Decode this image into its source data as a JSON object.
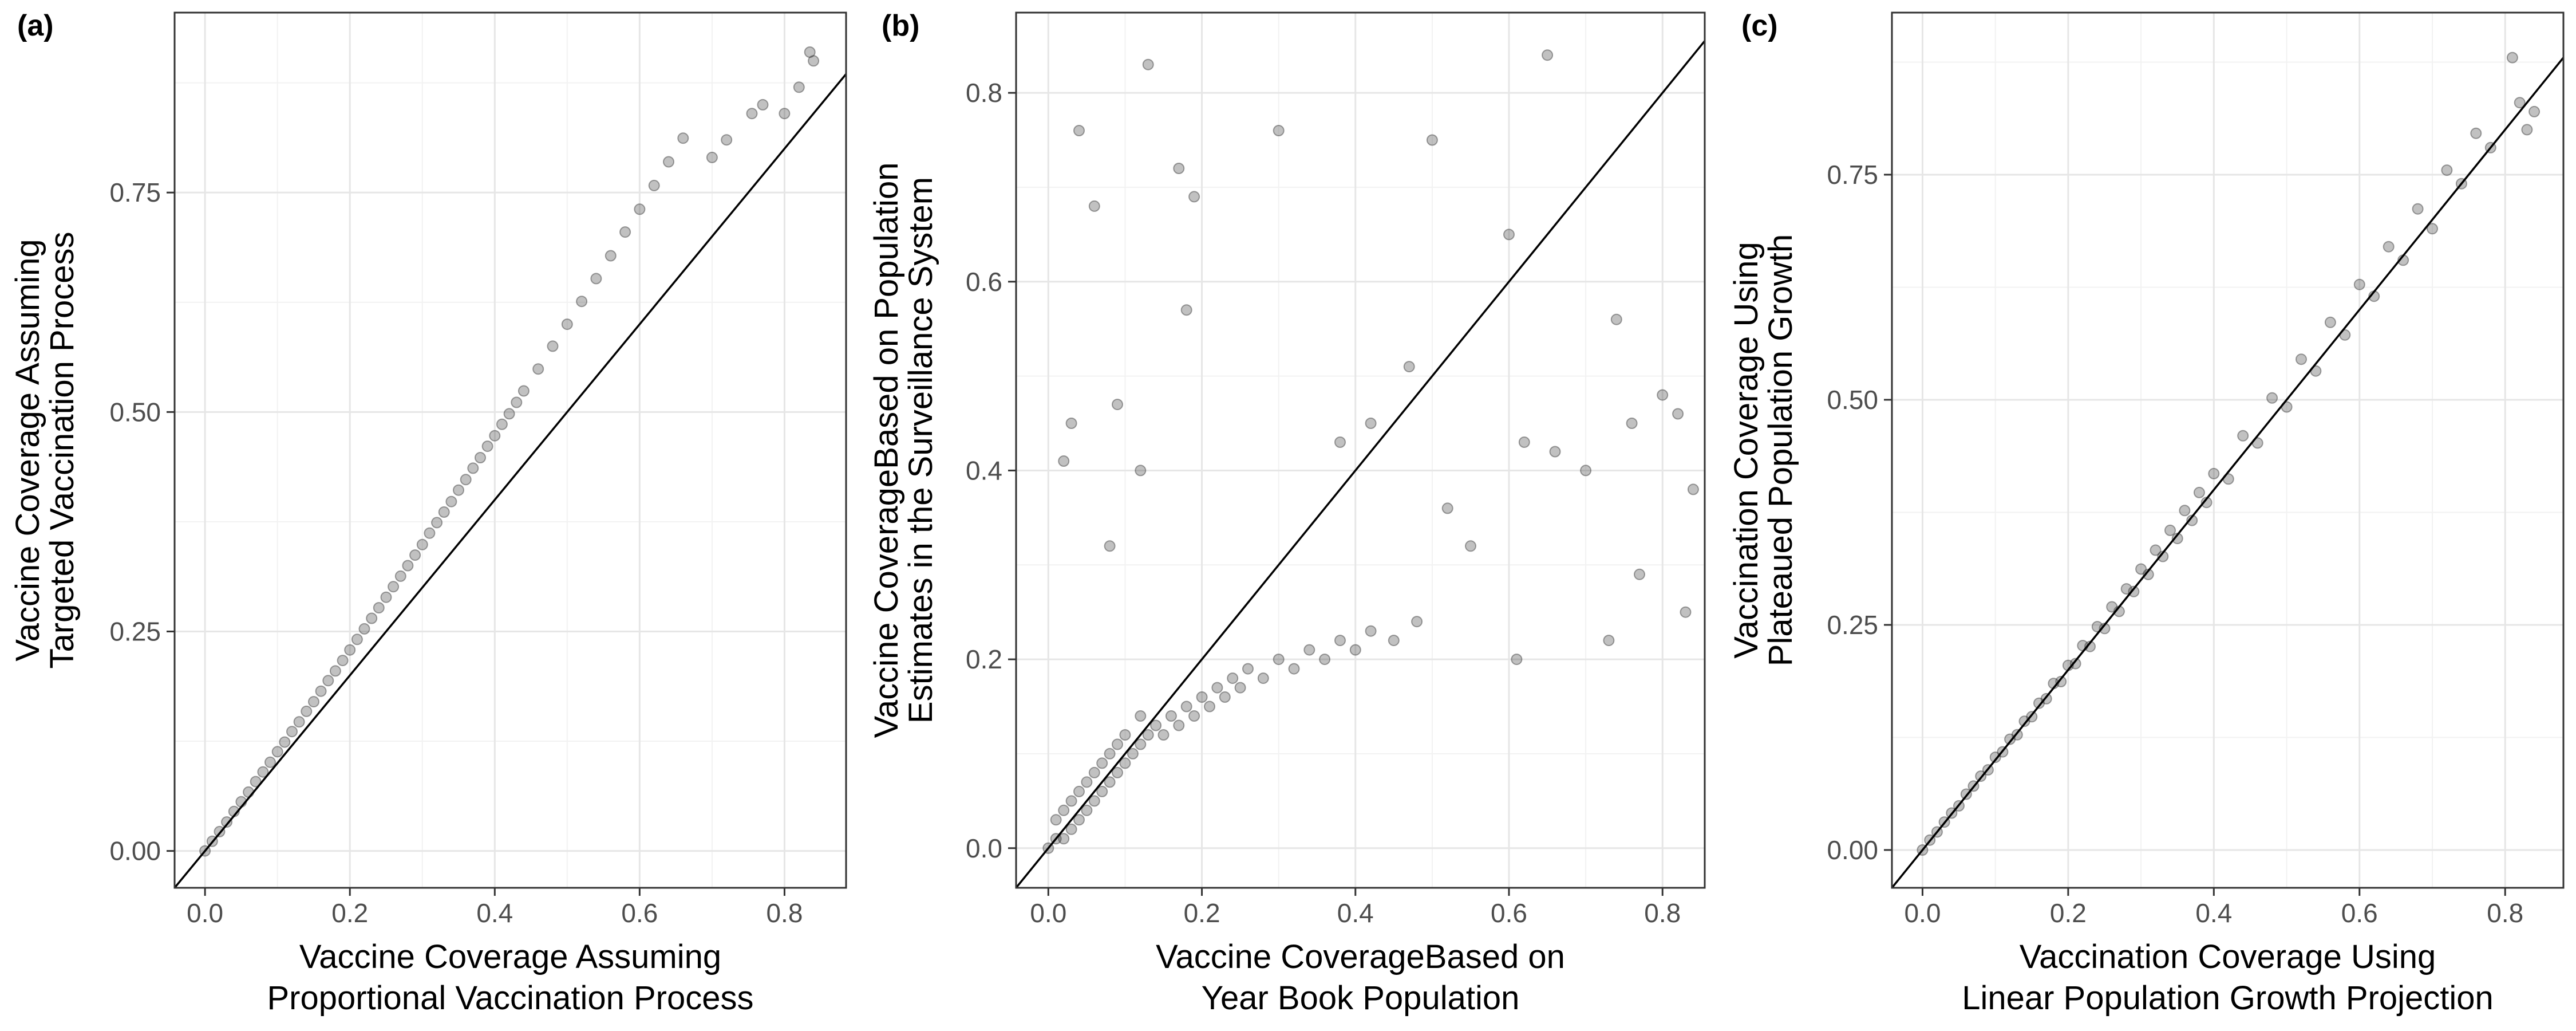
{
  "figure": {
    "panels": [
      {
        "tag": "(a)",
        "xlabel_lines": [
          "Vaccine Coverage Assuming",
          "Proportional Vaccination Process"
        ],
        "ylabel_lines": [
          "Vaccine Coverage Assuming",
          "Targeted Vaccination Process"
        ]
      },
      {
        "tag": "(b)",
        "xlabel_lines": [
          "Vaccine CoverageBased on",
          "Year Book Population"
        ],
        "ylabel_lines": [
          "Vaccine CoverageBased on Population",
          "Estimates in the Surveillance System"
        ]
      },
      {
        "tag": "(c)",
        "xlabel_lines": [
          "Vaccination Coverage Using",
          "Linear Population Growth Projection"
        ],
        "ylabel_lines": [
          "Vaccination Coverage Using",
          "Plateaued Population Growth"
        ]
      }
    ]
  },
  "chart_data": [
    {
      "type": "scatter",
      "panel_tag": "(a)",
      "title": "",
      "xlabel": "Vaccine Coverage Assuming Proportional Vaccination Process",
      "ylabel": "Vaccine Coverage Assuming Targeted Vaccination Process",
      "xlim": [
        -0.042,
        0.885
      ],
      "ylim": [
        -0.042,
        0.955
      ],
      "xticks": [
        0.0,
        0.2,
        0.4,
        0.6,
        0.8
      ],
      "xtick_labels": [
        "0.0",
        "0.2",
        "0.4",
        "0.6",
        "0.8"
      ],
      "yticks": [
        0.0,
        0.25,
        0.5,
        0.75
      ],
      "ytick_labels": [
        "0.00",
        "0.25",
        "0.50",
        "0.75"
      ],
      "reference_line": "y = x",
      "grid": true,
      "point_color": "#333333",
      "series": [
        {
          "points": [
            [
              0.0,
              0.0
            ],
            [
              0.01,
              0.011
            ],
            [
              0.02,
              0.022
            ],
            [
              0.03,
              0.033
            ],
            [
              0.04,
              0.045
            ],
            [
              0.05,
              0.056
            ],
            [
              0.06,
              0.067
            ],
            [
              0.07,
              0.079
            ],
            [
              0.08,
              0.09
            ],
            [
              0.09,
              0.101
            ],
            [
              0.1,
              0.113
            ],
            [
              0.11,
              0.124
            ],
            [
              0.12,
              0.136
            ],
            [
              0.13,
              0.147
            ],
            [
              0.14,
              0.159
            ],
            [
              0.15,
              0.17
            ],
            [
              0.16,
              0.182
            ],
            [
              0.17,
              0.194
            ],
            [
              0.18,
              0.205
            ],
            [
              0.19,
              0.217
            ],
            [
              0.2,
              0.229
            ],
            [
              0.21,
              0.241
            ],
            [
              0.22,
              0.253
            ],
            [
              0.23,
              0.265
            ],
            [
              0.24,
              0.277
            ],
            [
              0.25,
              0.289
            ],
            [
              0.26,
              0.301
            ],
            [
              0.27,
              0.313
            ],
            [
              0.28,
              0.325
            ],
            [
              0.29,
              0.337
            ],
            [
              0.3,
              0.349
            ],
            [
              0.31,
              0.362
            ],
            [
              0.32,
              0.374
            ],
            [
              0.33,
              0.386
            ],
            [
              0.34,
              0.398
            ],
            [
              0.35,
              0.411
            ],
            [
              0.36,
              0.423
            ],
            [
              0.37,
              0.436
            ],
            [
              0.38,
              0.448
            ],
            [
              0.39,
              0.461
            ],
            [
              0.4,
              0.473
            ],
            [
              0.41,
              0.486
            ],
            [
              0.42,
              0.498
            ],
            [
              0.43,
              0.511
            ],
            [
              0.44,
              0.524
            ],
            [
              0.46,
              0.549
            ],
            [
              0.48,
              0.575
            ],
            [
              0.5,
              0.6
            ],
            [
              0.52,
              0.626
            ],
            [
              0.54,
              0.652
            ],
            [
              0.56,
              0.678
            ],
            [
              0.58,
              0.705
            ],
            [
              0.6,
              0.731
            ],
            [
              0.62,
              0.758
            ],
            [
              0.64,
              0.785
            ],
            [
              0.66,
              0.812
            ],
            [
              0.7,
              0.79
            ],
            [
              0.72,
              0.81
            ],
            [
              0.755,
              0.84
            ],
            [
              0.77,
              0.85
            ],
            [
              0.8,
              0.84
            ],
            [
              0.82,
              0.87
            ],
            [
              0.835,
              0.91
            ],
            [
              0.84,
              0.9
            ]
          ]
        }
      ]
    },
    {
      "type": "scatter",
      "panel_tag": "(b)",
      "title": "",
      "xlabel": "Vaccine CoverageBased on Year Book Population",
      "ylabel": "Vaccine CoverageBased on Population Estimates in the Surveillance System",
      "xlim": [
        -0.042,
        0.855
      ],
      "ylim": [
        -0.042,
        0.885
      ],
      "xticks": [
        0.0,
        0.2,
        0.4,
        0.6,
        0.8
      ],
      "xtick_labels": [
        "0.0",
        "0.2",
        "0.4",
        "0.6",
        "0.8"
      ],
      "yticks": [
        0.0,
        0.2,
        0.4,
        0.6,
        0.8
      ],
      "ytick_labels": [
        "0.0",
        "0.2",
        "0.4",
        "0.6",
        "0.8"
      ],
      "reference_line": "y = x",
      "grid": true,
      "point_color": "#333333",
      "series": [
        {
          "points": [
            [
              0.0,
              0.0
            ],
            [
              0.01,
              0.01
            ],
            [
              0.01,
              0.03
            ],
            [
              0.02,
              0.01
            ],
            [
              0.02,
              0.04
            ],
            [
              0.03,
              0.02
            ],
            [
              0.03,
              0.05
            ],
            [
              0.04,
              0.03
            ],
            [
              0.04,
              0.06
            ],
            [
              0.05,
              0.04
            ],
            [
              0.05,
              0.07
            ],
            [
              0.06,
              0.05
            ],
            [
              0.06,
              0.08
            ],
            [
              0.07,
              0.06
            ],
            [
              0.07,
              0.09
            ],
            [
              0.08,
              0.07
            ],
            [
              0.08,
              0.1
            ],
            [
              0.09,
              0.08
            ],
            [
              0.09,
              0.11
            ],
            [
              0.1,
              0.09
            ],
            [
              0.1,
              0.12
            ],
            [
              0.11,
              0.1
            ],
            [
              0.12,
              0.11
            ],
            [
              0.12,
              0.14
            ],
            [
              0.13,
              0.12
            ],
            [
              0.14,
              0.13
            ],
            [
              0.15,
              0.12
            ],
            [
              0.16,
              0.14
            ],
            [
              0.17,
              0.13
            ],
            [
              0.18,
              0.15
            ],
            [
              0.19,
              0.14
            ],
            [
              0.2,
              0.16
            ],
            [
              0.21,
              0.15
            ],
            [
              0.22,
              0.17
            ],
            [
              0.23,
              0.16
            ],
            [
              0.24,
              0.18
            ],
            [
              0.25,
              0.17
            ],
            [
              0.26,
              0.19
            ],
            [
              0.28,
              0.18
            ],
            [
              0.3,
              0.2
            ],
            [
              0.32,
              0.19
            ],
            [
              0.34,
              0.21
            ],
            [
              0.36,
              0.2
            ],
            [
              0.38,
              0.22
            ],
            [
              0.4,
              0.21
            ],
            [
              0.42,
              0.23
            ],
            [
              0.45,
              0.22
            ],
            [
              0.48,
              0.24
            ],
            [
              0.02,
              0.41
            ],
            [
              0.03,
              0.45
            ],
            [
              0.04,
              0.76
            ],
            [
              0.06,
              0.68
            ],
            [
              0.09,
              0.47
            ],
            [
              0.13,
              0.83
            ],
            [
              0.17,
              0.72
            ],
            [
              0.18,
              0.57
            ],
            [
              0.19,
              0.69
            ],
            [
              0.3,
              0.76
            ],
            [
              0.5,
              0.75
            ],
            [
              0.65,
              0.84
            ],
            [
              0.6,
              0.65
            ],
            [
              0.42,
              0.45
            ],
            [
              0.38,
              0.43
            ],
            [
              0.47,
              0.51
            ],
            [
              0.55,
              0.32
            ],
            [
              0.62,
              0.43
            ],
            [
              0.66,
              0.42
            ],
            [
              0.7,
              0.4
            ],
            [
              0.74,
              0.56
            ],
            [
              0.76,
              0.45
            ],
            [
              0.8,
              0.48
            ],
            [
              0.82,
              0.46
            ],
            [
              0.84,
              0.38
            ],
            [
              0.83,
              0.25
            ],
            [
              0.77,
              0.29
            ],
            [
              0.73,
              0.22
            ],
            [
              0.61,
              0.2
            ],
            [
              0.52,
              0.36
            ],
            [
              0.08,
              0.32
            ],
            [
              0.12,
              0.4
            ]
          ]
        }
      ]
    },
    {
      "type": "scatter",
      "panel_tag": "(c)",
      "title": "",
      "xlabel": "Vaccination Coverage Using Linear Population Growth Projection",
      "ylabel": "Vaccination Coverage Using Plateaued Population Growth",
      "xlim": [
        -0.042,
        0.88
      ],
      "ylim": [
        -0.042,
        0.93
      ],
      "xticks": [
        0.0,
        0.2,
        0.4,
        0.6,
        0.8
      ],
      "xtick_labels": [
        "0.0",
        "0.2",
        "0.4",
        "0.6",
        "0.8"
      ],
      "yticks": [
        0.0,
        0.25,
        0.5,
        0.75
      ],
      "ytick_labels": [
        "0.00",
        "0.25",
        "0.50",
        "0.75"
      ],
      "reference_line": "y = x",
      "grid": true,
      "point_color": "#333333",
      "series": [
        {
          "points": [
            [
              0.0,
              0.0
            ],
            [
              0.01,
              0.011
            ],
            [
              0.02,
              0.02
            ],
            [
              0.03,
              0.031
            ],
            [
              0.04,
              0.041
            ],
            [
              0.05,
              0.049
            ],
            [
              0.06,
              0.062
            ],
            [
              0.07,
              0.071
            ],
            [
              0.08,
              0.082
            ],
            [
              0.09,
              0.089
            ],
            [
              0.1,
              0.103
            ],
            [
              0.11,
              0.109
            ],
            [
              0.12,
              0.123
            ],
            [
              0.13,
              0.128
            ],
            [
              0.14,
              0.143
            ],
            [
              0.15,
              0.148
            ],
            [
              0.16,
              0.163
            ],
            [
              0.17,
              0.168
            ],
            [
              0.18,
              0.185
            ],
            [
              0.19,
              0.187
            ],
            [
              0.2,
              0.205
            ],
            [
              0.21,
              0.207
            ],
            [
              0.22,
              0.227
            ],
            [
              0.23,
              0.226
            ],
            [
              0.24,
              0.248
            ],
            [
              0.25,
              0.246
            ],
            [
              0.26,
              0.27
            ],
            [
              0.27,
              0.265
            ],
            [
              0.28,
              0.29
            ],
            [
              0.29,
              0.287
            ],
            [
              0.3,
              0.312
            ],
            [
              0.31,
              0.306
            ],
            [
              0.32,
              0.333
            ],
            [
              0.33,
              0.326
            ],
            [
              0.34,
              0.355
            ],
            [
              0.35,
              0.346
            ],
            [
              0.36,
              0.377
            ],
            [
              0.37,
              0.366
            ],
            [
              0.38,
              0.397
            ],
            [
              0.39,
              0.386
            ],
            [
              0.4,
              0.418
            ],
            [
              0.42,
              0.412
            ],
            [
              0.44,
              0.46
            ],
            [
              0.46,
              0.452
            ],
            [
              0.48,
              0.502
            ],
            [
              0.5,
              0.492
            ],
            [
              0.52,
              0.545
            ],
            [
              0.54,
              0.532
            ],
            [
              0.56,
              0.586
            ],
            [
              0.58,
              0.572
            ],
            [
              0.6,
              0.628
            ],
            [
              0.62,
              0.615
            ],
            [
              0.64,
              0.67
            ],
            [
              0.66,
              0.655
            ],
            [
              0.68,
              0.712
            ],
            [
              0.7,
              0.69
            ],
            [
              0.72,
              0.755
            ],
            [
              0.74,
              0.74
            ],
            [
              0.76,
              0.796
            ],
            [
              0.78,
              0.78
            ],
            [
              0.81,
              0.88
            ],
            [
              0.82,
              0.83
            ],
            [
              0.84,
              0.82
            ],
            [
              0.83,
              0.8
            ]
          ]
        }
      ]
    }
  ]
}
